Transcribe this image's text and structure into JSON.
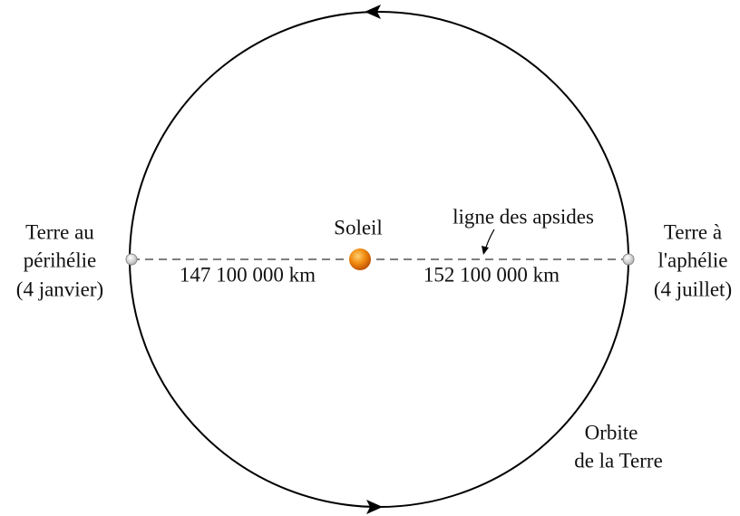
{
  "diagram": {
    "perihelion": {
      "lines": [
        "Terre au",
        "périhélie",
        "(4 janvier)"
      ]
    },
    "aphelion": {
      "lines": [
        "Terre à",
        "l'aphélie",
        "(4 juillet)"
      ]
    },
    "sun": "Soleil",
    "apsides_line": "ligne des apsides",
    "distance_perihelion": "147 100 000 km",
    "distance_aphelion": "152 100 000 km",
    "orbit": {
      "lines": [
        "Orbite",
        "de la Terre"
      ]
    }
  }
}
